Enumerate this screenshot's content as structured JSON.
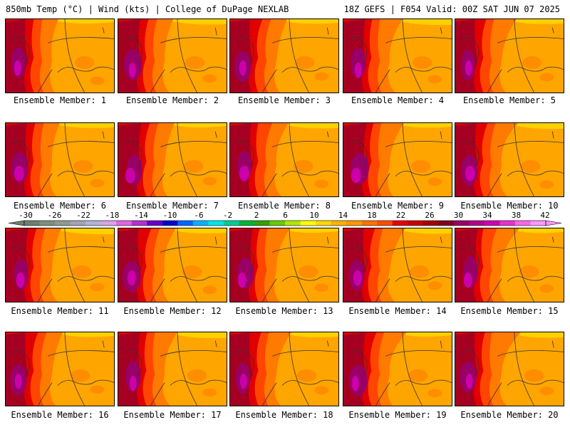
{
  "header": {
    "title": "850mb Temp (°C) | Wind (kts) | College of DuPage NEXLAB",
    "run_info": "18Z GEFS | F054 Valid: 00Z SAT JUN 07 2025"
  },
  "members": [
    "Ensemble Member: 1",
    "Ensemble Member: 2",
    "Ensemble Member: 3",
    "Ensemble Member: 4",
    "Ensemble Member: 5",
    "Ensemble Member: 6",
    "Ensemble Member: 7",
    "Ensemble Member: 8",
    "Ensemble Member: 9",
    "Ensemble Member: 10",
    "Ensemble Member: 11",
    "Ensemble Member: 12",
    "Ensemble Member: 13",
    "Ensemble Member: 14",
    "Ensemble Member: 15",
    "Ensemble Member: 16",
    "Ensemble Member: 17",
    "Ensemble Member: 18",
    "Ensemble Member: 19",
    "Ensemble Member: 20"
  ],
  "colorbar": {
    "labels": [
      "-30",
      "-26",
      "-22",
      "-18",
      "-14",
      "-10",
      "-6",
      "-2",
      "2",
      "6",
      "10",
      "14",
      "18",
      "22",
      "26",
      "30",
      "34",
      "38",
      "42"
    ],
    "colors": [
      "#6e7f6e",
      "#7f8f7f",
      "#909a90",
      "#a3a3b3",
      "#b3b3d9",
      "#d9a3e6",
      "#e066e6",
      "#b333cc",
      "#6600cc",
      "#0000cc",
      "#0066ff",
      "#00b3ff",
      "#00e6e6",
      "#00cc99",
      "#00b33c",
      "#33a300",
      "#66cc00",
      "#b3e600",
      "#ffff00",
      "#ffd900",
      "#ffb300",
      "#ff9900",
      "#ff7300",
      "#ff4d00",
      "#e60000",
      "#cc0000",
      "#a30000",
      "#800020",
      "#990066",
      "#b3008c",
      "#cc00b3",
      "#e633cc",
      "#ff66e6",
      "#ff99ff"
    ]
  },
  "map_colors": {
    "base": "#ffa500",
    "north": "#ffd000",
    "warm1": "#ff7a00",
    "warm2": "#ff4500",
    "hot1": "#e00000",
    "hot2": "#a50021",
    "hot3": "#990066",
    "hot4": "#cc00aa",
    "lines": "#333333"
  }
}
